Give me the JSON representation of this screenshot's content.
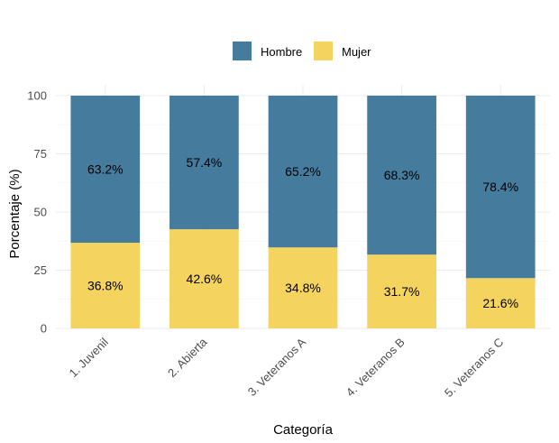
{
  "chart_data": {
    "type": "bar",
    "stacked": true,
    "categories": [
      "1. Juvenil",
      "2. Abierta",
      "3. Veteranos A",
      "4. Veteranos B",
      "5. Veteranos C"
    ],
    "series": [
      {
        "name": "Hombre",
        "color": "#457b9d",
        "values": [
          63.2,
          57.4,
          65.2,
          68.3,
          78.4
        ],
        "labels": [
          "63.2%",
          "57.4%",
          "65.2%",
          "68.3%",
          "78.4%"
        ]
      },
      {
        "name": "Mujer",
        "color": "#f4d35e",
        "values": [
          36.8,
          42.6,
          34.8,
          31.7,
          21.6
        ],
        "labels": [
          "36.8%",
          "42.6%",
          "34.8%",
          "31.7%",
          "21.6%"
        ]
      }
    ],
    "xlabel": "Categoría",
    "ylabel": "Porcentaje (%)",
    "ylim": [
      0,
      100
    ],
    "yticks": [
      0,
      25,
      50,
      75,
      100
    ],
    "ytick_labels": [
      "0",
      "25",
      "50",
      "75",
      "100"
    ],
    "grid": true,
    "legend_position": "top"
  }
}
